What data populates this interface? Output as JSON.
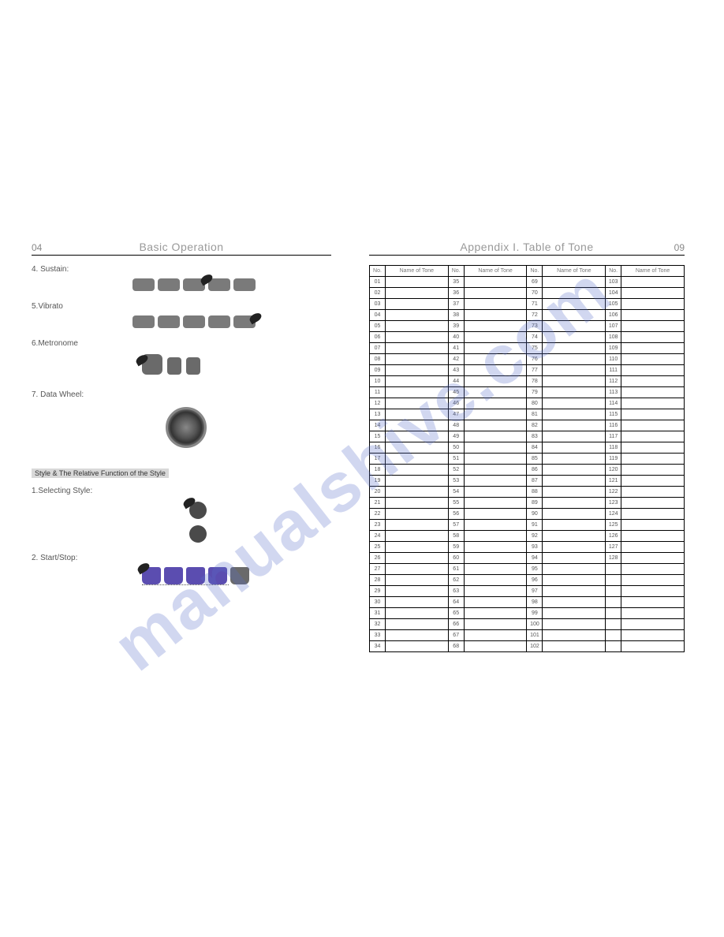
{
  "watermark": "manualshive.com",
  "left": {
    "page_number": "04",
    "title": "Basic Operation",
    "sections": {
      "sustain": "4. Sustain:",
      "vibrato": "5.Vibrato",
      "metronome": "6.Metronome",
      "data_wheel": "7. Data Wheel:",
      "style_header": "Style & The Relative Function of the Style",
      "selecting_style": "1.Selecting Style:",
      "start_stop": "2. Start/Stop:"
    },
    "button_color": "#7a7a7a",
    "purple_button_color": "#5b4db0",
    "wheel_color": "#555555"
  },
  "right": {
    "page_number": "09",
    "title": "Appendix I. Table of Tone",
    "headers": {
      "no": "No.",
      "name": "Name of Tone"
    },
    "columns": [
      {
        "start": 1,
        "end": 34
      },
      {
        "start": 35,
        "end": 68
      },
      {
        "start": 69,
        "end": 102
      },
      {
        "start": 103,
        "end": 128
      }
    ]
  },
  "colors": {
    "background": "#ffffff",
    "text_muted": "#888888",
    "border": "#000000",
    "watermark": "rgba(90,110,200,0.28)"
  }
}
